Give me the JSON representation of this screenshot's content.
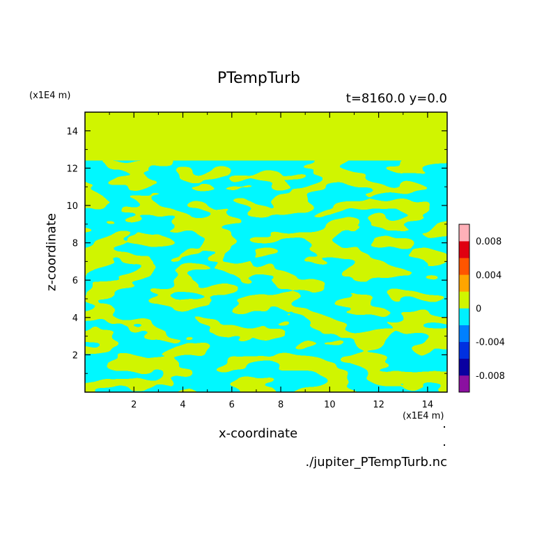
{
  "chart_data": {
    "type": "heatmap",
    "title": "PTempTurb",
    "subtitle": "t=8160.0 y=0.0",
    "xlabel": "x-coordinate",
    "ylabel": "z-coordinate",
    "x_unit": "(x1E4 m)",
    "y_unit": "(x1E4 m)",
    "xlim": [
      0,
      14.8
    ],
    "ylim": [
      0,
      15
    ],
    "x_ticks": [
      2,
      4,
      6,
      8,
      10,
      12,
      14
    ],
    "y_ticks": [
      2,
      4,
      6,
      8,
      10,
      12,
      14
    ],
    "field_top_z": 12.4,
    "dominant_levels": [
      "0 to 0.002",
      "-0.002 to 0"
    ],
    "colorbar": {
      "levels": [
        -0.01,
        -0.008,
        -0.006,
        -0.004,
        -0.002,
        0,
        0.002,
        0.004,
        0.006,
        0.008,
        0.01
      ],
      "colors": [
        "#8b10a0",
        "#0a00a0",
        "#0030e0",
        "#0080ff",
        "#00f0ff",
        "#d0f500",
        "#ffa500",
        "#ff5500",
        "#e00010",
        "#ffb0b8"
      ],
      "tick_labels": [
        "-0.008",
        "-0.004",
        "0",
        "0.004",
        "0.008"
      ],
      "tick_values": [
        -0.008,
        -0.004,
        0,
        0.004,
        0.008
      ]
    },
    "grid": false
  },
  "footer": "./jupiter_PTempTurb.nc"
}
